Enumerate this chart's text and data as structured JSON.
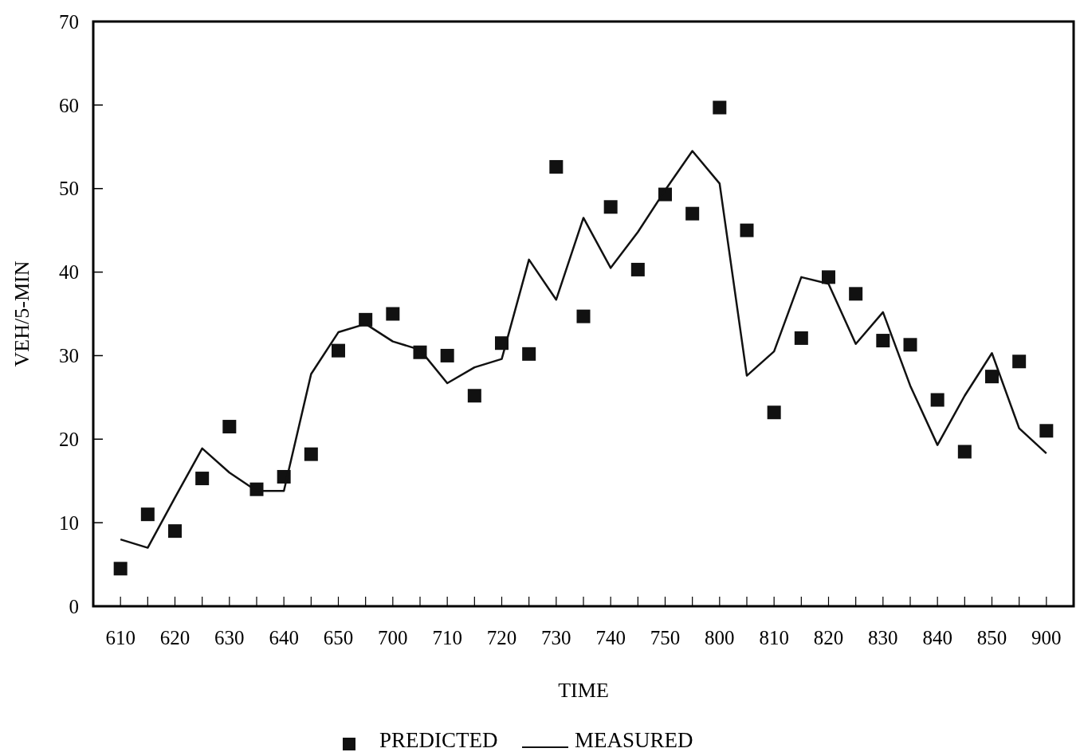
{
  "chart_data": {
    "type": "line",
    "xlabel": "TIME",
    "ylabel": "VEH/5-MIN",
    "categories": [
      "610",
      null,
      "620",
      null,
      "630",
      null,
      "640",
      null,
      "650",
      null,
      "700",
      null,
      "710",
      null,
      "720",
      null,
      "730",
      null,
      "740",
      null,
      "750",
      null,
      "800",
      null,
      "810",
      null,
      "820",
      null,
      "830",
      null,
      "840",
      null,
      "850",
      null,
      "900"
    ],
    "series": [
      {
        "name": "PREDICTED",
        "type": "scatter",
        "marker": "square",
        "color": "#111111",
        "values": [
          4.5,
          11,
          9,
          15.3,
          21.5,
          14,
          15.5,
          18.2,
          30.6,
          34.3,
          35,
          30.4,
          30,
          25.2,
          31.5,
          30.2,
          52.6,
          34.7,
          47.8,
          40.3,
          49.3,
          47,
          59.7,
          45,
          23.2,
          32.1,
          39.4,
          37.4,
          31.8,
          31.3,
          24.7,
          18.5,
          27.5,
          29.3,
          21
        ]
      },
      {
        "name": "MEASURED",
        "marker": "none",
        "line_style": "solid",
        "color": "#111111",
        "values": [
          8,
          7,
          13,
          18.9,
          16,
          13.8,
          13.8,
          27.8,
          32.8,
          33.8,
          31.7,
          30.7,
          26.7,
          28.6,
          29.6,
          41.5,
          36.7,
          46.5,
          40.5,
          44.8,
          49.8,
          54.5,
          50.6,
          27.6,
          30.5,
          39.4,
          38.6,
          31.4,
          35.2,
          26.4,
          19.3,
          25.2,
          30.3,
          21.3,
          18.3
        ]
      }
    ],
    "ylim": [
      0,
      70
    ],
    "yticks": [
      0,
      10,
      20,
      30,
      40,
      50,
      60,
      70
    ],
    "grid": false,
    "legend": "bottom"
  }
}
